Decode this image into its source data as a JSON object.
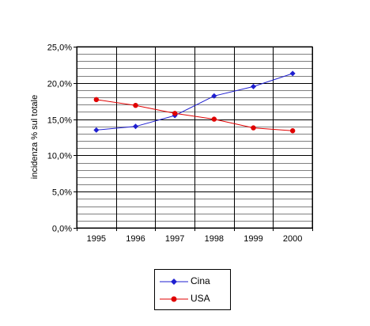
{
  "chart_data": {
    "type": "line",
    "categories": [
      "1995",
      "1996",
      "1997",
      "1998",
      "1999",
      "2000"
    ],
    "series": [
      {
        "name": "Cina",
        "values": [
          13.5,
          14.0,
          15.5,
          18.2,
          19.5,
          21.3
        ],
        "color": "#1f1fd0",
        "marker": "diamond"
      },
      {
        "name": "USA",
        "values": [
          17.7,
          16.9,
          15.8,
          15.0,
          13.8,
          13.4
        ],
        "color": "#e00000",
        "marker": "circle"
      }
    ],
    "ylabel": "incidenza % sul totale",
    "ylim": [
      0,
      25
    ],
    "yticks": [
      "0,0%",
      "5,0%",
      "10,0%",
      "15,0%",
      "20,0%",
      "25,0%"
    ],
    "grid": true,
    "minor_grid_step": 1,
    "legend_position": "bottom"
  }
}
